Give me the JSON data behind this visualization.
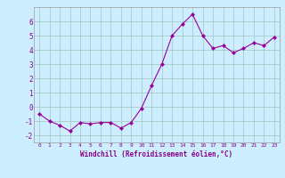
{
  "x": [
    0,
    1,
    2,
    3,
    4,
    5,
    6,
    7,
    8,
    9,
    10,
    11,
    12,
    13,
    14,
    15,
    16,
    17,
    18,
    19,
    20,
    21,
    22,
    23
  ],
  "y": [
    -0.5,
    -1.0,
    -1.3,
    -1.7,
    -1.1,
    -1.2,
    -1.1,
    -1.1,
    -1.5,
    -1.1,
    -0.1,
    1.5,
    3.0,
    5.0,
    5.8,
    6.5,
    5.0,
    4.1,
    4.3,
    3.8,
    4.1,
    4.5,
    4.3,
    4.9
  ],
  "line_color": "#990099",
  "marker": "D",
  "marker_size": 2,
  "bg_color": "#cceeff",
  "grid_color": "#aacccc",
  "xlabel": "Windchill (Refroidissement éolien,°C)",
  "ylabel_ticks": [
    -2,
    -1,
    0,
    1,
    2,
    3,
    4,
    5,
    6
  ],
  "xlim": [
    -0.5,
    23.5
  ],
  "ylim": [
    -2.5,
    7.0
  ],
  "tick_color": "#880088",
  "label_color": "#880088"
}
